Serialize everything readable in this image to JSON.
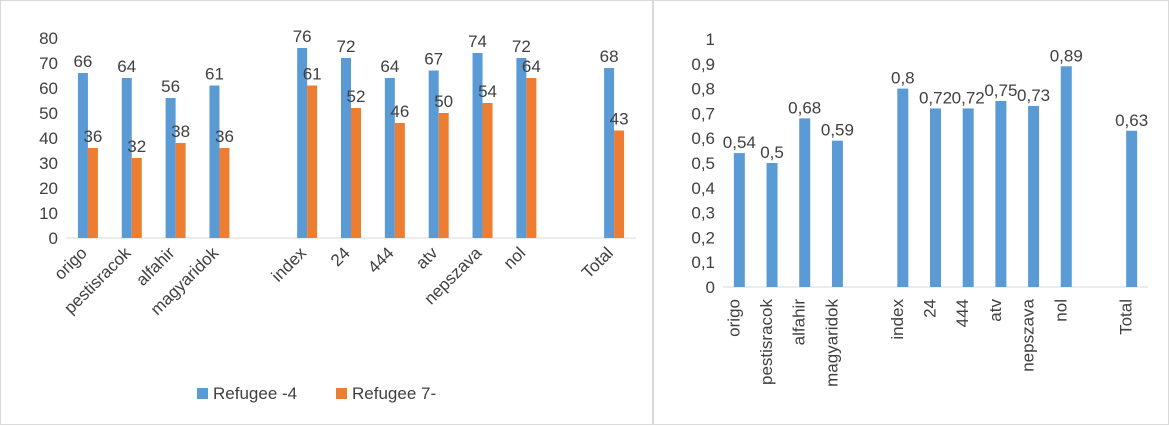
{
  "chart_data": [
    {
      "type": "bar",
      "categories": [
        "origo",
        "pestisracok",
        "alfahir",
        "magyaridok",
        "",
        "index",
        "24",
        "444",
        "atv",
        "nepszava",
        "nol",
        "",
        "Total"
      ],
      "series": [
        {
          "name": "Refugee -4",
          "values": [
            66,
            64,
            56,
            61,
            null,
            76,
            72,
            64,
            67,
            74,
            72,
            null,
            68
          ],
          "labels": [
            "66",
            "64",
            "56",
            "61",
            "",
            "76",
            "72",
            "64",
            "67",
            "74",
            "72",
            "",
            "68"
          ],
          "color": "#5b9bd5"
        },
        {
          "name": "Refugee 7-",
          "values": [
            36,
            32,
            38,
            36,
            null,
            61,
            52,
            46,
            50,
            54,
            64,
            null,
            43
          ],
          "labels": [
            "36",
            "32",
            "38",
            "36",
            "",
            "61",
            "52",
            "46",
            "50",
            "54",
            "64",
            "",
            "43"
          ],
          "color": "#ed7d31"
        }
      ],
      "yticks": [
        "0",
        "10",
        "20",
        "30",
        "40",
        "50",
        "60",
        "70",
        "80"
      ],
      "ylim": [
        0,
        80
      ],
      "legend": "bottom",
      "grid": false
    },
    {
      "type": "bar",
      "categories": [
        "origo",
        "pestisracok",
        "alfahir",
        "magyaridok",
        "",
        "index",
        "24",
        "444",
        "atv",
        "nepszava",
        "nol",
        "",
        "Total"
      ],
      "series": [
        {
          "values": [
            0.54,
            0.5,
            0.68,
            0.59,
            null,
            0.8,
            0.72,
            0.72,
            0.75,
            0.73,
            0.89,
            null,
            0.63
          ],
          "labels": [
            "0,54",
            "0,5",
            "0,68",
            "0,59",
            "",
            "0,8",
            "0,72",
            "0,72",
            "0,75",
            "0,73",
            "0,89",
            "",
            "0,63"
          ],
          "color": "#5b9bd5"
        }
      ],
      "yticks": [
        "0",
        "0,1",
        "0,2",
        "0,3",
        "0,4",
        "0,5",
        "0,6",
        "0,7",
        "0,8",
        "0,9",
        "1"
      ],
      "ylim": [
        0,
        1
      ],
      "grid": false
    }
  ]
}
